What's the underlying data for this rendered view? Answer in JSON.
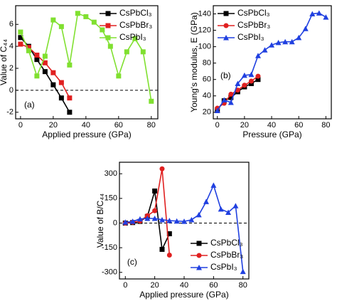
{
  "chart_data": [
    {
      "type": "line",
      "panel_label": "(a)",
      "x_label": "Applied pressure (GPa)",
      "y_label": "Value of C₄₄",
      "xlim": [
        -3,
        84
      ],
      "ylim": [
        -2.6,
        7.7
      ],
      "xticks": [
        0,
        20,
        40,
        60,
        80
      ],
      "yticks": [
        -2,
        0,
        2,
        4,
        6
      ],
      "zero_line": true,
      "legend": "upper right",
      "series": [
        {
          "name": "CsPbCl₃",
          "color": "#000000",
          "marker": "square",
          "x": [
            0,
            5,
            10,
            15,
            20,
            25,
            30
          ],
          "values": [
            4.8,
            4.0,
            2.8,
            1.7,
            0.5,
            -0.7,
            -2.0
          ]
        },
        {
          "name": "CsPbBr₃",
          "color": "#e02020",
          "marker": "square",
          "x": [
            0,
            5,
            10,
            15,
            20,
            25,
            30
          ],
          "values": [
            4.2,
            3.9,
            3.2,
            2.5,
            1.6,
            0.7,
            -0.7
          ]
        },
        {
          "name": "CsPbI₃",
          "color": "#80e030",
          "marker": "square",
          "x": [
            0,
            5,
            10,
            15,
            20,
            25,
            30,
            35,
            40,
            45,
            50,
            55,
            60,
            65,
            70,
            75,
            80
          ],
          "values": [
            5.3,
            3.6,
            1.3,
            3.1,
            6.4,
            5.8,
            2.3,
            7.0,
            6.7,
            6.2,
            5.5,
            4.0,
            1.3,
            3.5,
            4.7,
            3.5,
            -1.0
          ]
        }
      ]
    },
    {
      "type": "line",
      "panel_label": "(b)",
      "x_label": "Pressure (GPa)",
      "y_label": "Young's modulus, E (GPa)",
      "xlim": [
        -3,
        84
      ],
      "ylim": [
        12,
        150
      ],
      "xticks": [
        0,
        20,
        40,
        60,
        80
      ],
      "yticks": [
        20,
        40,
        60,
        80,
        100,
        120,
        140
      ],
      "zero_line": false,
      "legend": "upper left",
      "series": [
        {
          "name": "CsPbCl₃",
          "color": "#000000",
          "marker": "square",
          "x": [
            0,
            5,
            10,
            15,
            20,
            25,
            30
          ],
          "values": [
            23,
            34,
            38,
            45,
            51,
            55,
            60
          ]
        },
        {
          "name": "CsPbBr₃",
          "color": "#e02020",
          "marker": "circle",
          "x": [
            0,
            5,
            10,
            15,
            20,
            25,
            30
          ],
          "values": [
            25,
            31,
            42,
            47,
            53,
            58,
            64
          ]
        },
        {
          "name": "CsPbI₃",
          "color": "#2040e0",
          "marker": "triangle",
          "x": [
            0,
            5,
            10,
            15,
            20,
            25,
            30,
            35,
            40,
            45,
            50,
            55,
            60,
            65,
            70,
            75,
            80
          ],
          "values": [
            22,
            35,
            32,
            55,
            65,
            66,
            89,
            96,
            102,
            105,
            106,
            106,
            111,
            122,
            140,
            141,
            136
          ]
        }
      ]
    },
    {
      "type": "line",
      "panel_label": "(c)",
      "x_label": "Applied pressure (GPa)",
      "y_label": "Value of  B/C₄₄",
      "xlim": [
        -4,
        84
      ],
      "ylim": [
        -340,
        370
      ],
      "xticks": [
        0,
        20,
        40,
        60,
        80
      ],
      "yticks": [
        -300,
        -150,
        0,
        150,
        300
      ],
      "zero_line": true,
      "legend": "lower right",
      "series": [
        {
          "name": "CsPbCl₃",
          "color": "#000000",
          "marker": "square",
          "x": [
            0,
            5,
            10,
            15,
            20,
            25,
            30
          ],
          "values": [
            0,
            3,
            10,
            40,
            195,
            -160,
            -65
          ]
        },
        {
          "name": "CsPbBr₃",
          "color": "#e02020",
          "marker": "circle",
          "x": [
            0,
            5,
            10,
            15,
            20,
            25,
            30
          ],
          "values": [
            0,
            5,
            12,
            45,
            75,
            330,
            -195
          ]
        },
        {
          "name": "CsPbI₃",
          "color": "#2040e0",
          "marker": "triangle",
          "x": [
            0,
            5,
            10,
            15,
            20,
            25,
            30,
            35,
            40,
            45,
            50,
            55,
            60,
            65,
            70,
            75,
            80
          ],
          "values": [
            5,
            10,
            25,
            28,
            28,
            20,
            15,
            12,
            10,
            20,
            50,
            130,
            230,
            85,
            65,
            105,
            -295
          ]
        }
      ]
    }
  ]
}
